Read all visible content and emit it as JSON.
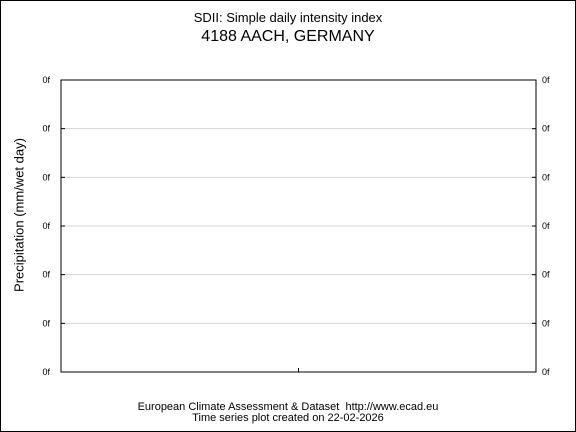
{
  "title": "SDII: Simple daily intensity index",
  "subtitle": "4188 AACH, GERMANY",
  "ylabel": "Precipitation (mm/wet day)",
  "footer_line1": "European Climate Assessment & Dataset  http://www.ecad.eu",
  "footer_line2": "Time series plot created on 22-02-2026",
  "chart_data": {
    "type": "line",
    "title": "SDII: Simple daily intensity index",
    "subtitle": "4188 AACH, GERMANY",
    "xlabel": "",
    "ylabel": "Precipitation (mm/wet day)",
    "y_tick_labels": [
      "0f",
      "0f",
      "0f",
      "0f",
      "0f",
      "0f",
      "0f"
    ],
    "series": [],
    "grid": true,
    "legend": "none"
  }
}
